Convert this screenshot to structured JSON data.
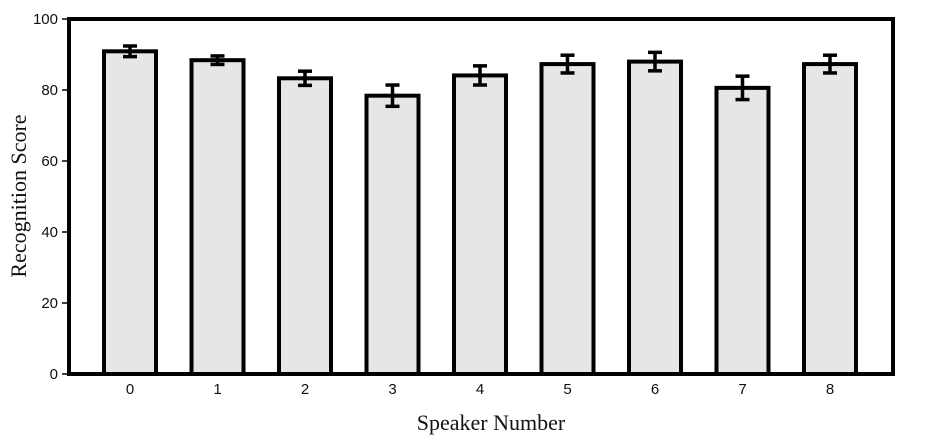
{
  "chart_data": {
    "type": "bar",
    "title": "",
    "xlabel": "Speaker Number",
    "ylabel": "Recognition Score",
    "categories": [
      "0",
      "1",
      "2",
      "3",
      "4",
      "5",
      "6",
      "7",
      "8"
    ],
    "values": [
      90.9,
      88.4,
      83.3,
      78.4,
      84.1,
      87.3,
      88.0,
      80.6,
      87.3
    ],
    "errors": [
      1.5,
      1.2,
      2.0,
      3.0,
      2.7,
      2.5,
      2.6,
      3.3,
      2.5
    ],
    "ylim": [
      0,
      100
    ],
    "yticks": [
      0,
      20,
      40,
      60,
      80,
      100
    ],
    "grid": false,
    "bar_fill": "#e6e6e6",
    "bar_stroke": "#000000"
  }
}
